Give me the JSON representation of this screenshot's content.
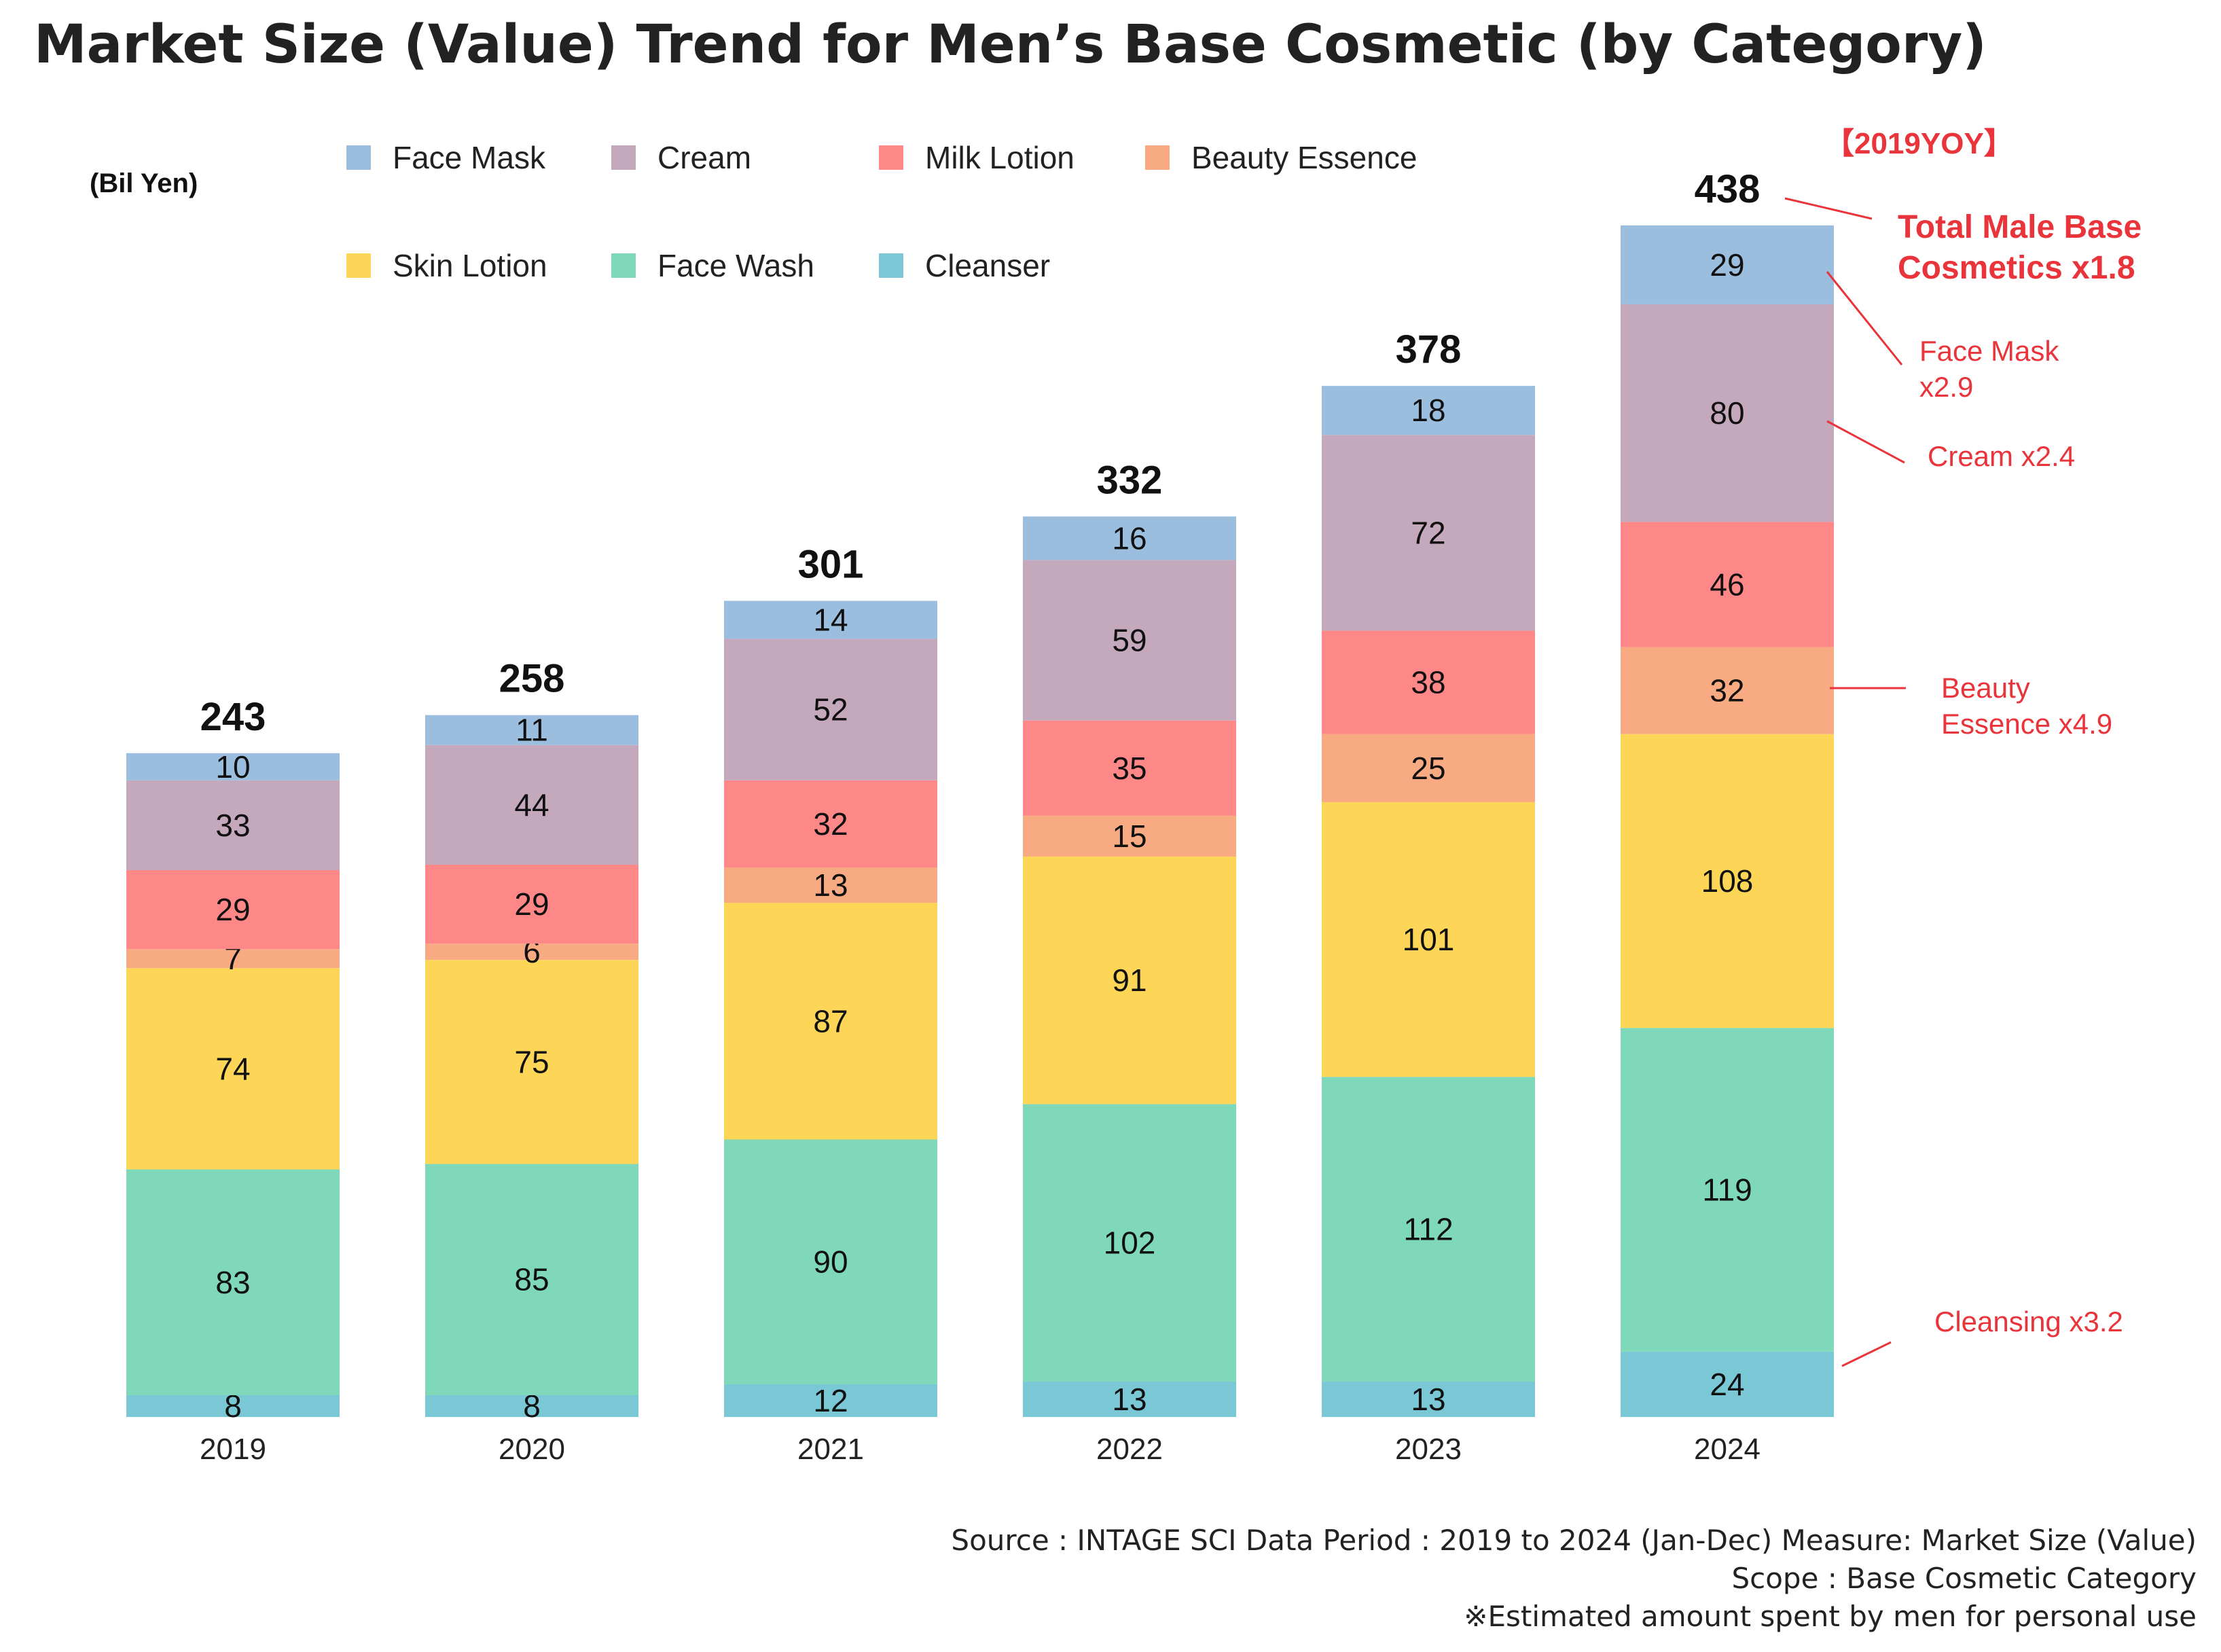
{
  "page_title": "Market Size (Value) Trend for Men’s Base Cosmetic (by Category)",
  "chart_data": {
    "type": "bar",
    "stacked": true,
    "title": "Market Size (Value) Trend for Men’s Base Cosmetic (by Category)",
    "ylabel": "(Bil Yen)",
    "xlabel": "",
    "ylim": [
      0,
      450
    ],
    "grid": false,
    "legend_position": "top",
    "categories": [
      "2019",
      "2020",
      "2021",
      "2022",
      "2023",
      "2024"
    ],
    "series": [
      {
        "name": "Cleanser",
        "color": "#7ac7d6",
        "values": [
          8,
          8,
          12,
          13,
          13,
          24
        ]
      },
      {
        "name": "Face Wash",
        "color": "#80d8bb",
        "values": [
          83,
          85,
          90,
          102,
          112,
          119
        ]
      },
      {
        "name": "Skin Lotion",
        "color": "#fdd657",
        "values": [
          74,
          75,
          87,
          91,
          101,
          108
        ]
      },
      {
        "name": "Beauty Essence",
        "color": "#f8aa82",
        "values": [
          7,
          6,
          13,
          15,
          25,
          32
        ]
      },
      {
        "name": "Milk Lotion",
        "color": "#fe8787",
        "values": [
          29,
          29,
          32,
          35,
          38,
          46
        ]
      },
      {
        "name": "Cream",
        "color": "#c4a9bc",
        "values": [
          33,
          44,
          52,
          59,
          72,
          80
        ]
      },
      {
        "name": "Face Mask",
        "color": "#9bbedf",
        "values": [
          10,
          11,
          14,
          16,
          18,
          29
        ]
      }
    ],
    "totals": [
      243,
      258,
      301,
      332,
      378,
      438
    ],
    "legend_order": [
      "Face Mask",
      "Cream",
      "Milk Lotion",
      "Beauty Essence",
      "Skin Lotion",
      "Face Wash",
      "Cleanser"
    ],
    "annotations": {
      "header": "【2019YOY】",
      "total_line1": "Total Male Base",
      "total_line2": "Cosmetics x1.8",
      "face_mask_line1": "Face Mask",
      "face_mask_line2": "x2.9",
      "cream": "Cream x2.4",
      "beauty_line1": "Beauty",
      "beauty_line2": "Essence x4.9",
      "cleansing": "Cleansing x3.2"
    }
  },
  "colors": {
    "annotation": "#e8343a",
    "text": "#222222"
  },
  "footer": {
    "line1": "Source : INTAGE SCI    Data Period : 2019 to 2024 (Jan-Dec)    Measure: Market Size (Value)",
    "line2": "Scope : Base Cosmetic Category",
    "line3": "※Estimated amount spent by men for personal use"
  }
}
